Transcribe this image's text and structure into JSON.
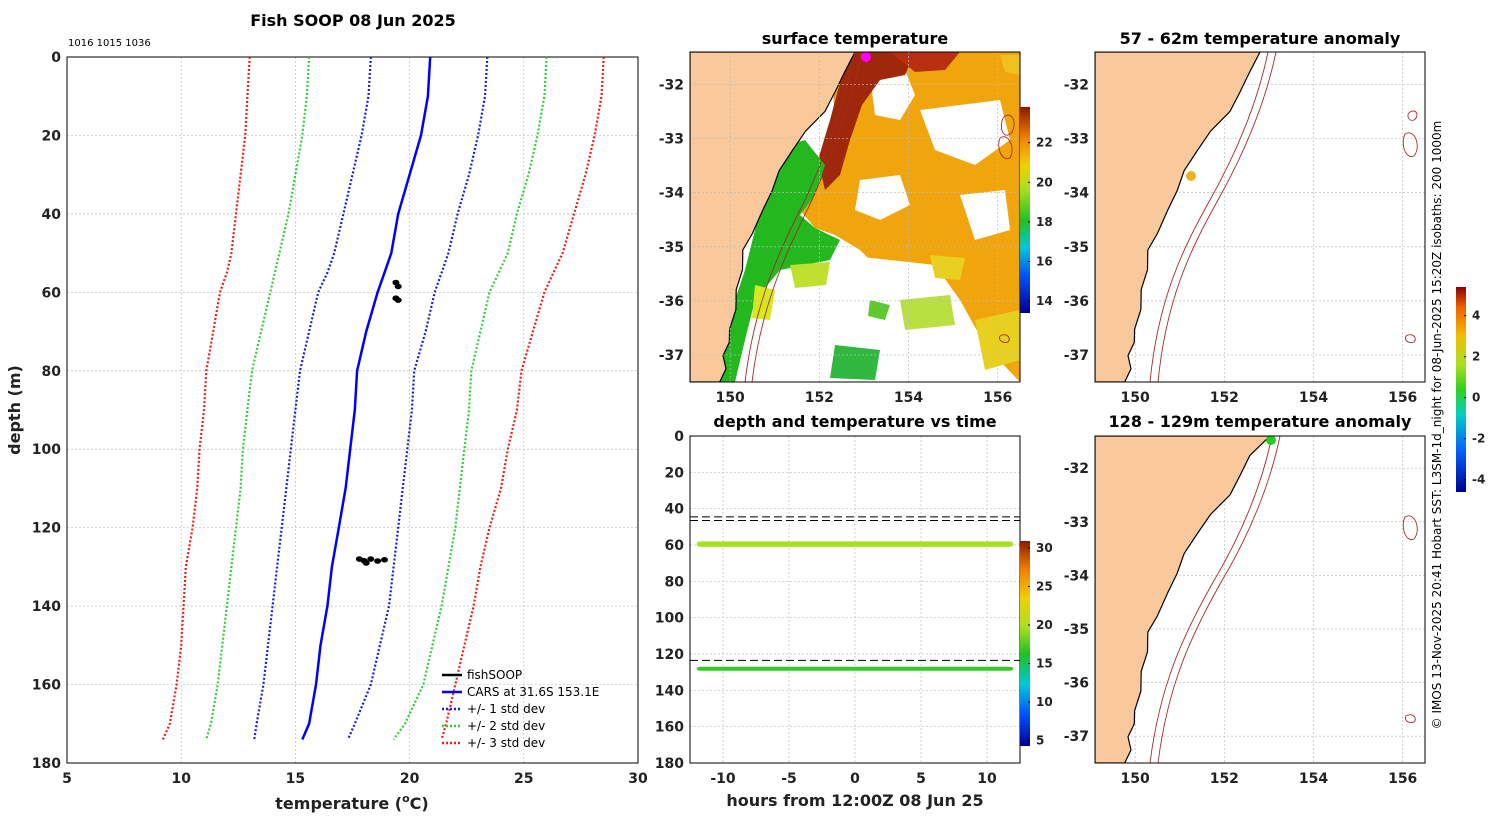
{
  "colors": {
    "land": "#f9c89b",
    "coast": "#000000",
    "isobath": "#a52a2a",
    "cars": "#0000ff",
    "soop": "#000000",
    "std1": "#1b1bd9",
    "std2": "#33cc33",
    "std3": "#ee1b1b",
    "dashline": "#000000"
  },
  "profile": {
    "title": "Fish SOOP 08 Jun 2025",
    "ids": "1016 1015 1036",
    "xlabel": "temperature (°C)",
    "ylabel": "depth (m)",
    "xticks": [
      "5",
      "10",
      "15",
      "20",
      "25",
      "30"
    ],
    "yticks": [
      "0",
      "20",
      "40",
      "60",
      "80",
      "100",
      "120",
      "140",
      "160",
      "180"
    ],
    "legend": [
      "fishSOOP",
      "CARS at 31.6S 153.1E",
      "+/- 1 std dev",
      "+/- 2 std dev",
      "+/- 3 std dev"
    ]
  },
  "sst_map": {
    "title": "surface temperature",
    "xticks": [
      "150",
      "152",
      "154",
      "156"
    ],
    "yticks": [
      "-32",
      "-33",
      "-34",
      "-35",
      "-36",
      "-37"
    ],
    "cbar_ticks": [
      "22",
      "20",
      "18",
      "16",
      "14"
    ]
  },
  "timeseries": {
    "title": "depth and temperature vs time",
    "xlabel": "hours from 12:00Z 08 Jun 25",
    "xticks": [
      "-10",
      "-5",
      "0",
      "5",
      "10"
    ],
    "yticks": [
      "0",
      "20",
      "40",
      "60",
      "80",
      "100",
      "120",
      "140",
      "160",
      "180"
    ],
    "cbar_ticks": [
      "30",
      "25",
      "20",
      "15",
      "10",
      "5"
    ]
  },
  "anom_top": {
    "title": "57 - 62m temperature anomaly",
    "xticks": [
      "150",
      "152",
      "154",
      "156"
    ],
    "yticks": [
      "-32",
      "-33",
      "-34",
      "-35",
      "-36",
      "-37"
    ]
  },
  "anom_bottom": {
    "title": "128 - 129m temperature anomaly",
    "xticks": [
      "150",
      "152",
      "154",
      "156"
    ],
    "yticks": [
      "-32",
      "-33",
      "-34",
      "-35",
      "-36",
      "-37"
    ]
  },
  "anom_cbar": {
    "ticks": [
      "4",
      "2",
      "0",
      "-2",
      "-4"
    ]
  },
  "footer": "© IMOS 13-Nov-2025 20:41 Hobart SST: L3SM-1d_night for 08-Jun-2025 15:20Z isobaths: 200  1000m",
  "chart_data": [
    {
      "type": "line",
      "title": "Fish SOOP 08 Jun 2025",
      "xlabel": "temperature (°C)",
      "ylabel": "depth (m)",
      "xlim": [
        5,
        30
      ],
      "ylim": [
        180,
        0
      ],
      "depth": [
        0,
        10,
        20,
        30,
        40,
        50,
        55,
        60,
        70,
        80,
        90,
        100,
        110,
        120,
        130,
        140,
        150,
        160,
        170,
        174
      ],
      "series": [
        {
          "name": "CARS at 31.6S 153.1E",
          "style": "solid",
          "temp": [
            20.9,
            20.8,
            20.5,
            20.0,
            19.5,
            19.2,
            18.9,
            18.6,
            18.1,
            17.7,
            17.6,
            17.4,
            17.2,
            16.9,
            16.6,
            16.4,
            16.1,
            15.9,
            15.6,
            15.3
          ]
        },
        {
          "name": "CARS -1 std dev",
          "style": "dotted",
          "temp": [
            18.3,
            18.2,
            17.9,
            17.5,
            17.1,
            16.7,
            16.4,
            16.0,
            15.6,
            15.2,
            15.0,
            14.8,
            14.6,
            14.4,
            14.2,
            14.0,
            13.8,
            13.6,
            13.3,
            13.2
          ]
        },
        {
          "name": "CARS +1 std dev",
          "style": "dotted",
          "temp": [
            23.4,
            23.3,
            23.0,
            22.6,
            22.1,
            21.7,
            21.4,
            21.1,
            20.7,
            20.2,
            20.1,
            19.9,
            19.7,
            19.5,
            19.3,
            19.1,
            18.7,
            18.3,
            17.6,
            17.3
          ]
        },
        {
          "name": "CARS -2 std dev",
          "style": "dotted",
          "temp": [
            15.6,
            15.5,
            15.3,
            15.0,
            14.7,
            14.3,
            14.1,
            13.9,
            13.5,
            13.1,
            12.9,
            12.7,
            12.6,
            12.4,
            12.2,
            12.0,
            11.8,
            11.6,
            11.3,
            11.1
          ]
        },
        {
          "name": "CARS +2 std dev",
          "style": "dotted",
          "temp": [
            26.0,
            25.9,
            25.6,
            25.2,
            24.7,
            24.3,
            23.9,
            23.5,
            23.1,
            22.7,
            22.6,
            22.4,
            22.2,
            22.0,
            21.7,
            21.4,
            21.0,
            20.6,
            19.8,
            19.3
          ]
        },
        {
          "name": "CARS -3 std dev",
          "style": "dotted",
          "temp": [
            13.0,
            12.9,
            12.8,
            12.6,
            12.4,
            12.2,
            12.0,
            11.7,
            11.4,
            11.1,
            11.0,
            10.8,
            10.7,
            10.5,
            10.2,
            10.1,
            10.0,
            9.8,
            9.5,
            9.2
          ]
        },
        {
          "name": "CARS +3 std dev",
          "style": "dotted",
          "temp": [
            28.5,
            28.4,
            28.1,
            27.7,
            27.2,
            26.7,
            26.3,
            25.9,
            25.4,
            24.9,
            24.7,
            24.3,
            24.0,
            23.5,
            23.1,
            22.8,
            22.4,
            22.0,
            21.6,
            21.4
          ]
        }
      ],
      "soop_points": [
        {
          "temp": 19.4,
          "depth": 57.5
        },
        {
          "temp": 19.5,
          "depth": 58.5
        },
        {
          "temp": 19.4,
          "depth": 61.5
        },
        {
          "temp": 19.5,
          "depth": 62.0
        },
        {
          "temp": 17.8,
          "depth": 128.0
        },
        {
          "temp": 18.0,
          "depth": 128.4
        },
        {
          "temp": 18.3,
          "depth": 128.0
        },
        {
          "temp": 18.6,
          "depth": 128.5
        },
        {
          "temp": 18.9,
          "depth": 128.2
        },
        {
          "temp": 18.1,
          "depth": 129.0
        }
      ]
    },
    {
      "type": "scatter",
      "title": "depth and temperature vs time",
      "xlabel": "hours from 12:00Z 08 Jun 25",
      "xlim": [
        -12.5,
        12.5
      ],
      "ylim": [
        180,
        0
      ],
      "clim": [
        5,
        30
      ],
      "series": [
        {
          "name": "shallow sensor",
          "depth_range": [
            58,
            61
          ],
          "temp": 20.5,
          "hours": [
            -12,
            12
          ]
        },
        {
          "name": "deep sensor",
          "depth_range": [
            127,
            129
          ],
          "temp": 17.8,
          "hours": [
            -12,
            12
          ]
        }
      ],
      "dashed_depths": [
        44.5,
        46.5,
        123.5
      ]
    }
  ]
}
